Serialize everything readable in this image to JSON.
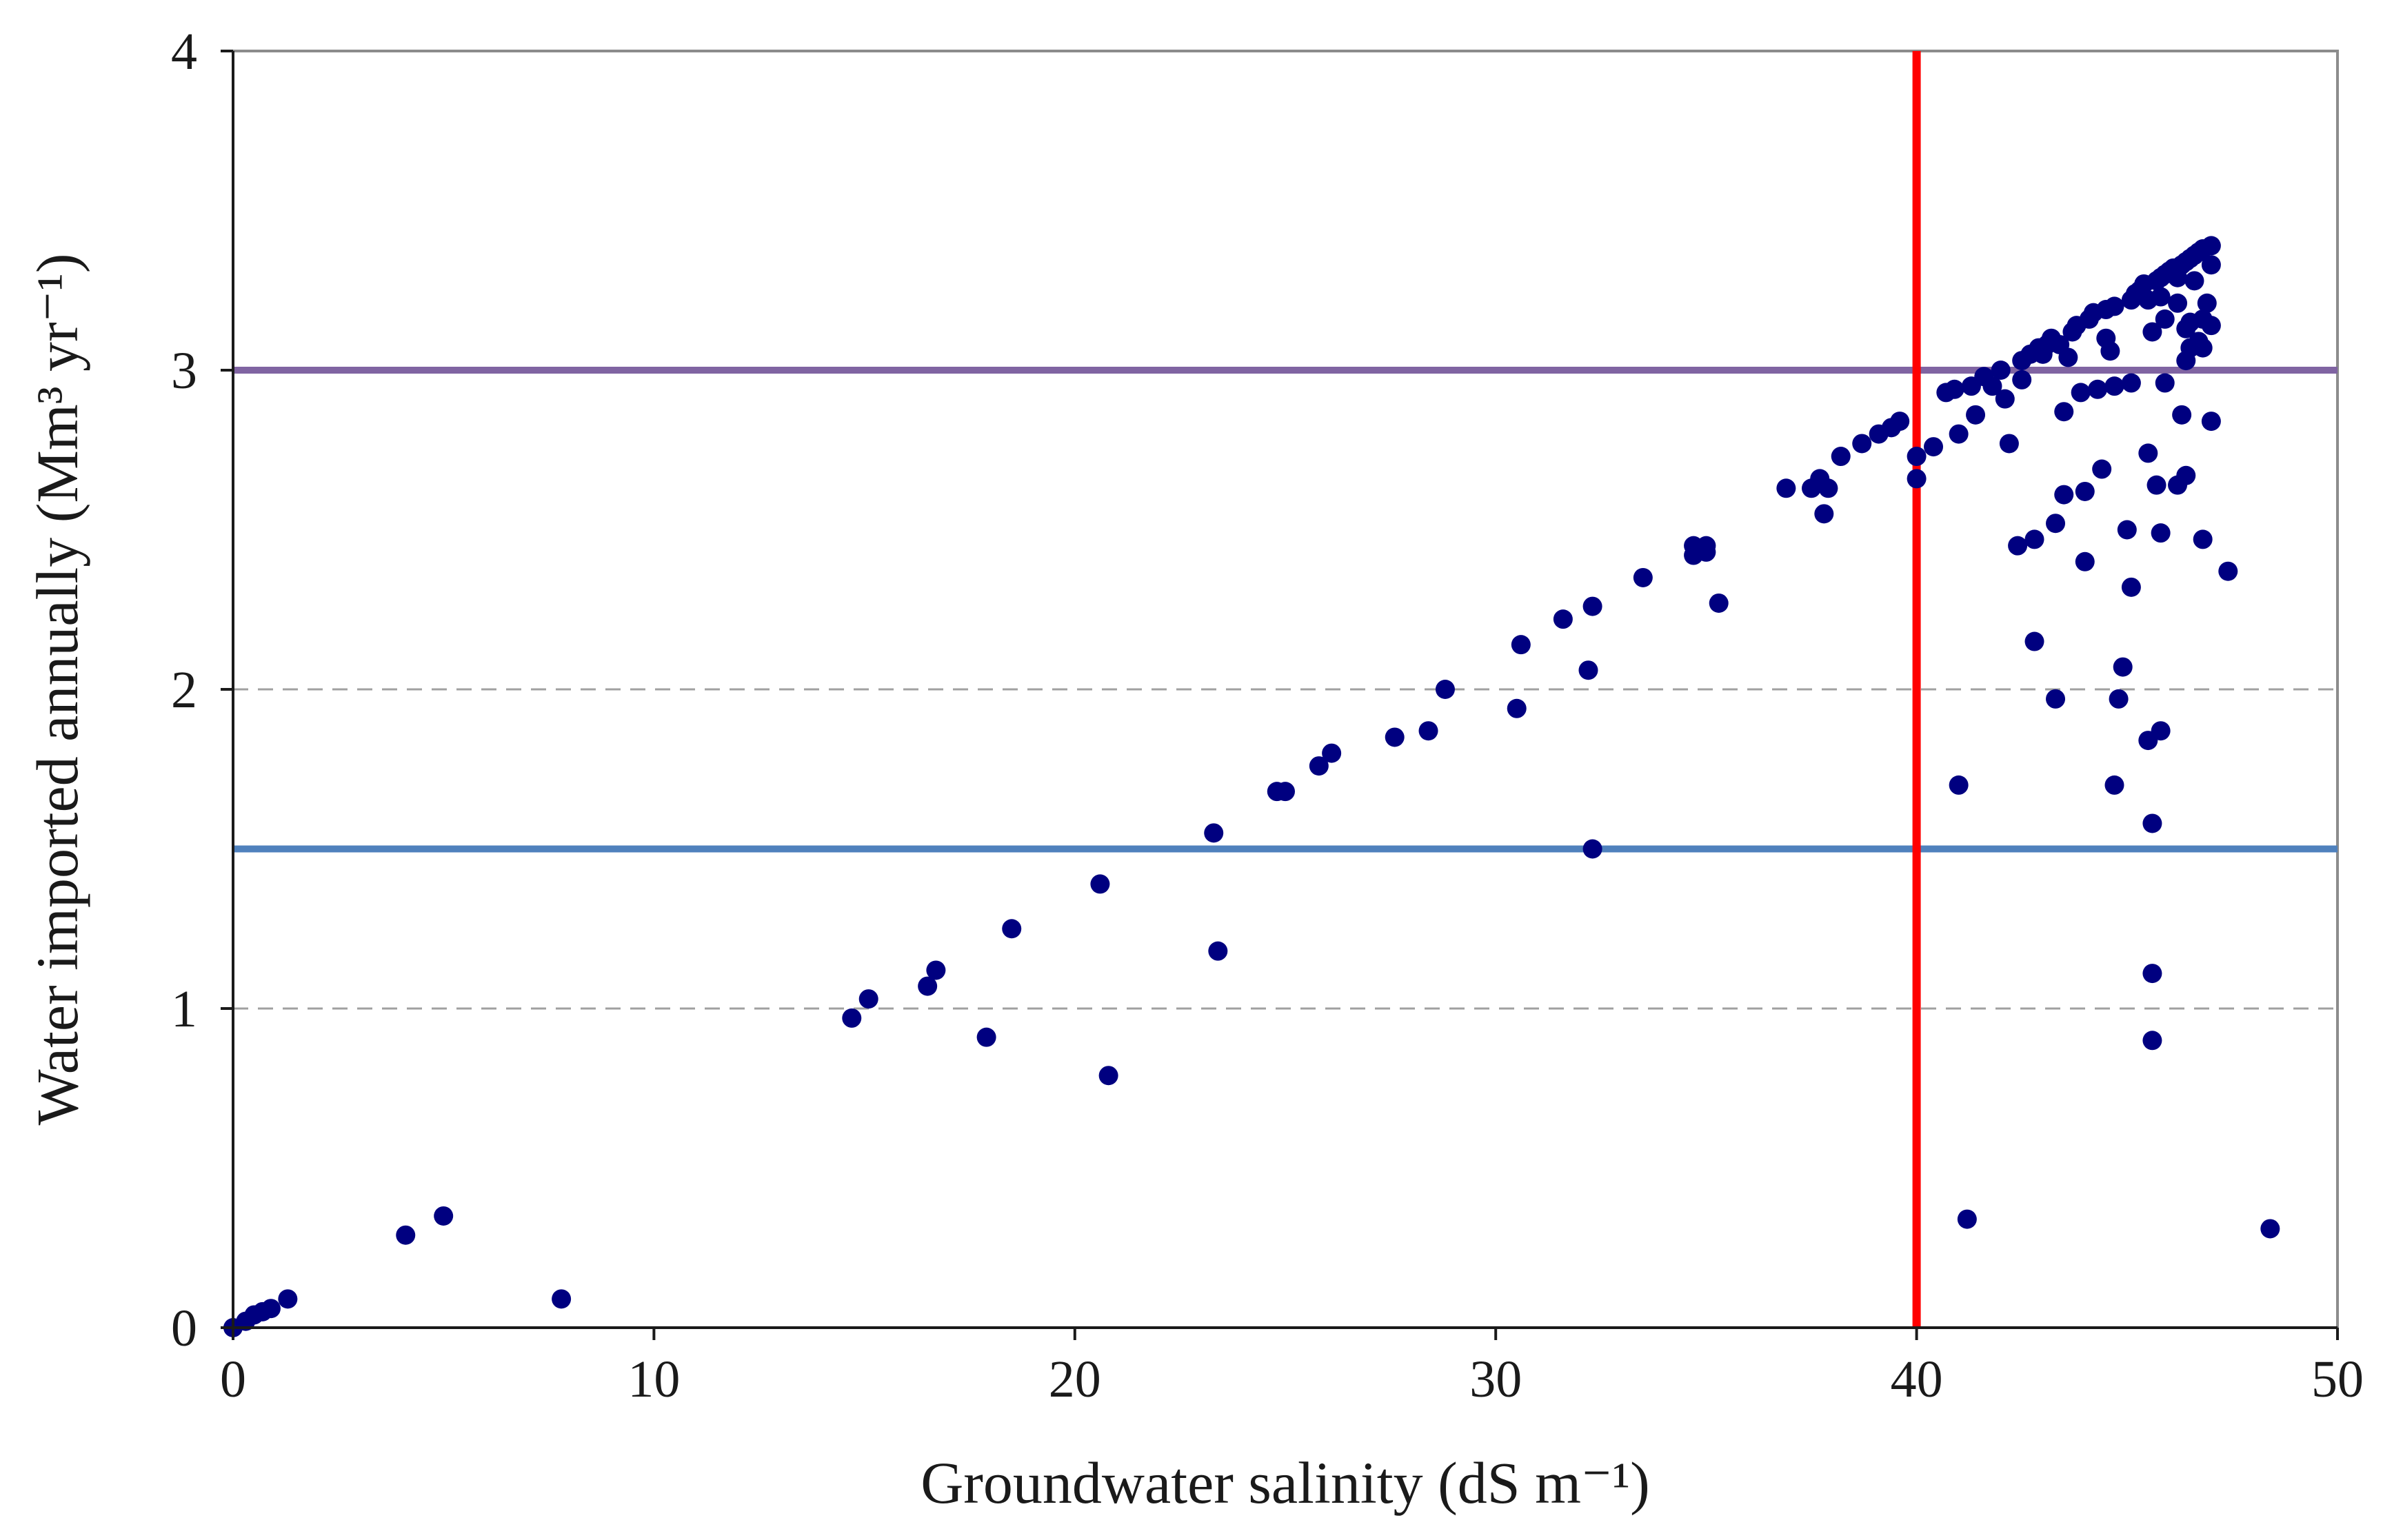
{
  "chart_data": {
    "type": "scatter",
    "xlabel": "Groundwater  salinity  (dS m⁻¹)",
    "ylabel": "Water  imported  annually  (Mm³ yr⁻¹)",
    "xlim": [
      0,
      50
    ],
    "ylim": [
      0,
      4
    ],
    "x_ticks": [
      0,
      10,
      20,
      30,
      40,
      50
    ],
    "y_ticks": [
      0,
      1,
      2,
      3,
      4
    ],
    "x_tick_labels": [
      "0",
      "10",
      "20",
      "30",
      "40",
      "50"
    ],
    "y_tick_labels": [
      "0",
      "1",
      "2",
      "3",
      "4"
    ],
    "grid": {
      "y_values": [
        1,
        2
      ],
      "style": "dashed",
      "color": "#a0a0a0"
    },
    "reference_lines": [
      {
        "orientation": "horizontal",
        "value": 3.0,
        "color": "#8064a2"
      },
      {
        "orientation": "horizontal",
        "value": 1.5,
        "color": "#4f81bd"
      },
      {
        "orientation": "vertical",
        "value": 40,
        "color": "#ff0000"
      }
    ],
    "series": [
      {
        "name": "points",
        "color": "#000080",
        "points": [
          [
            0,
            0
          ],
          [
            0.3,
            0.02
          ],
          [
            0.5,
            0.04
          ],
          [
            0.7,
            0.05
          ],
          [
            0.9,
            0.06
          ],
          [
            1.3,
            0.09
          ],
          [
            4.1,
            0.29
          ],
          [
            5.0,
            0.35
          ],
          [
            7.8,
            0.09
          ],
          [
            14.7,
            0.97
          ],
          [
            15.1,
            1.03
          ],
          [
            16.5,
            1.07
          ],
          [
            16.7,
            1.12
          ],
          [
            17.9,
            0.91
          ],
          [
            18.5,
            1.25
          ],
          [
            20.6,
            1.39
          ],
          [
            20.8,
            0.79
          ],
          [
            23.3,
            1.55
          ],
          [
            23.4,
            1.18
          ],
          [
            24.8,
            1.68
          ],
          [
            25.0,
            1.68
          ],
          [
            25.8,
            1.76
          ],
          [
            26.1,
            1.8
          ],
          [
            27.6,
            1.85
          ],
          [
            28.4,
            1.87
          ],
          [
            28.8,
            2.0
          ],
          [
            30.5,
            1.94
          ],
          [
            30.6,
            2.14
          ],
          [
            31.6,
            2.22
          ],
          [
            32.2,
            2.06
          ],
          [
            32.3,
            2.26
          ],
          [
            32.3,
            1.5
          ],
          [
            33.5,
            2.35
          ],
          [
            34.7,
            2.42
          ],
          [
            34.7,
            2.45
          ],
          [
            35.0,
            2.45
          ],
          [
            35.0,
            2.43
          ],
          [
            35.3,
            2.27
          ],
          [
            36.9,
            2.63
          ],
          [
            37.5,
            2.63
          ],
          [
            37.7,
            2.66
          ],
          [
            37.8,
            2.55
          ],
          [
            37.9,
            2.63
          ],
          [
            38.2,
            2.73
          ],
          [
            38.7,
            2.77
          ],
          [
            39.1,
            2.8
          ],
          [
            39.4,
            2.82
          ],
          [
            39.6,
            2.84
          ],
          [
            40.0,
            2.66
          ],
          [
            40.0,
            2.73
          ],
          [
            40.4,
            2.76
          ],
          [
            40.7,
            2.93
          ],
          [
            40.9,
            2.94
          ],
          [
            41.0,
            2.8
          ],
          [
            41.0,
            1.7
          ],
          [
            41.2,
            0.34
          ],
          [
            41.3,
            2.95
          ],
          [
            41.4,
            2.86
          ],
          [
            41.6,
            2.98
          ],
          [
            41.8,
            2.95
          ],
          [
            42.0,
            3.0
          ],
          [
            42.1,
            2.91
          ],
          [
            42.2,
            2.77
          ],
          [
            42.4,
            2.45
          ],
          [
            42.5,
            3.03
          ],
          [
            42.5,
            2.97
          ],
          [
            42.7,
            3.05
          ],
          [
            42.8,
            2.47
          ],
          [
            42.8,
            2.15
          ],
          [
            42.9,
            3.07
          ],
          [
            43.0,
            3.05
          ],
          [
            43.1,
            3.08
          ],
          [
            43.2,
            3.1
          ],
          [
            43.3,
            2.52
          ],
          [
            43.3,
            1.97
          ],
          [
            43.4,
            3.08
          ],
          [
            43.5,
            2.87
          ],
          [
            43.5,
            2.61
          ],
          [
            43.6,
            3.04
          ],
          [
            43.7,
            3.12
          ],
          [
            43.8,
            3.14
          ],
          [
            43.9,
            2.93
          ],
          [
            44.0,
            2.62
          ],
          [
            44.0,
            2.4
          ],
          [
            44.1,
            3.16
          ],
          [
            44.2,
            3.18
          ],
          [
            44.3,
            2.94
          ],
          [
            44.4,
            2.69
          ],
          [
            44.5,
            3.19
          ],
          [
            44.5,
            3.1
          ],
          [
            44.6,
            3.06
          ],
          [
            44.7,
            3.2
          ],
          [
            44.7,
            2.95
          ],
          [
            44.7,
            1.7
          ],
          [
            44.8,
            1.97
          ],
          [
            44.9,
            2.07
          ],
          [
            45.0,
            2.5
          ],
          [
            45.1,
            2.96
          ],
          [
            45.1,
            3.22
          ],
          [
            45.1,
            2.32
          ],
          [
            45.2,
            3.24
          ],
          [
            45.3,
            3.25
          ],
          [
            45.4,
            3.27
          ],
          [
            45.5,
            3.22
          ],
          [
            45.5,
            2.74
          ],
          [
            45.5,
            1.84
          ],
          [
            45.6,
            1.58
          ],
          [
            45.6,
            3.12
          ],
          [
            45.6,
            1.11
          ],
          [
            45.6,
            0.9
          ],
          [
            45.7,
            3.28
          ],
          [
            45.7,
            2.64
          ],
          [
            45.8,
            3.29
          ],
          [
            45.8,
            3.23
          ],
          [
            45.8,
            1.87
          ],
          [
            45.8,
            2.49
          ],
          [
            45.9,
            3.3
          ],
          [
            45.9,
            3.16
          ],
          [
            45.9,
            2.96
          ],
          [
            46.0,
            3.31
          ],
          [
            46.1,
            3.32
          ],
          [
            46.2,
            3.29
          ],
          [
            46.2,
            3.21
          ],
          [
            46.2,
            2.64
          ],
          [
            46.3,
            3.33
          ],
          [
            46.3,
            2.86
          ],
          [
            46.4,
            3.34
          ],
          [
            46.4,
            3.13
          ],
          [
            46.4,
            3.03
          ],
          [
            46.4,
            2.67
          ],
          [
            46.5,
            3.35
          ],
          [
            46.5,
            3.15
          ],
          [
            46.5,
            3.07
          ],
          [
            46.6,
            3.36
          ],
          [
            46.6,
            3.28
          ],
          [
            46.7,
            3.37
          ],
          [
            46.7,
            3.09
          ],
          [
            46.8,
            3.38
          ],
          [
            46.8,
            3.16
          ],
          [
            46.8,
            3.07
          ],
          [
            46.8,
            2.47
          ],
          [
            46.9,
            3.21
          ],
          [
            47.0,
            3.39
          ],
          [
            47.0,
            3.33
          ],
          [
            47.0,
            3.14
          ],
          [
            47.0,
            2.84
          ],
          [
            47.4,
            2.37
          ],
          [
            48.4,
            0.31
          ]
        ]
      }
    ]
  }
}
